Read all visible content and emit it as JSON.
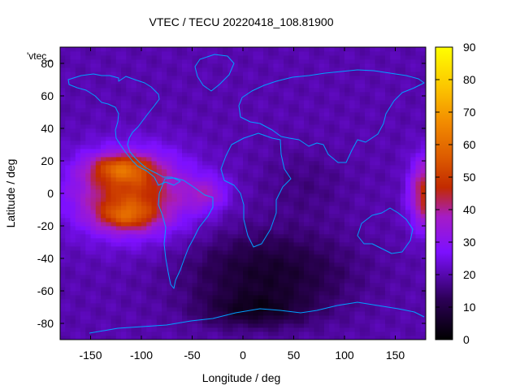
{
  "chart_data": {
    "type": "heatmap",
    "title": "VTEC / TECU 20220418_108.81900",
    "xlabel": "Longitude / deg",
    "ylabel": "Latitude / deg",
    "xlim": [
      -180,
      180
    ],
    "ylim": [
      -90,
      90
    ],
    "x_ticks": [
      -150,
      -100,
      -50,
      0,
      50,
      100,
      150
    ],
    "y_ticks": [
      -80,
      -60,
      -40,
      -20,
      0,
      20,
      40,
      60,
      80
    ],
    "colorbar": {
      "range": [
        0,
        90
      ],
      "ticks": [
        0,
        10,
        20,
        30,
        40,
        50,
        60,
        70,
        80,
        90
      ],
      "palette": "black-purple-red-orange-yellow"
    },
    "legend_key": "'vtec_",
    "overlay": "coastlines",
    "overlay_color": "#00a0ff",
    "field_features": [
      {
        "feature": "equatorial-anomaly-crest",
        "lon": -120,
        "lat": 16,
        "value": 75
      },
      {
        "feature": "equatorial-anomaly-crest",
        "lon": -115,
        "lat": -14,
        "value": 70
      },
      {
        "feature": "equatorial-band",
        "lon": -110,
        "lat": 0,
        "value": 55
      },
      {
        "feature": "equatorial-band-edge",
        "lon": 178,
        "lat": 5,
        "value": 50
      },
      {
        "feature": "atlantic-enhancement",
        "lon": -30,
        "lat": 0,
        "value": 45
      },
      {
        "feature": "southern-minimum",
        "lon": 20,
        "lat": -55,
        "value": 3
      },
      {
        "feature": "antarctic-minimum",
        "lon": 0,
        "lat": -72,
        "value": 2
      },
      {
        "feature": "arctic-background",
        "lon": 0,
        "lat": 75,
        "value": 20
      }
    ]
  }
}
